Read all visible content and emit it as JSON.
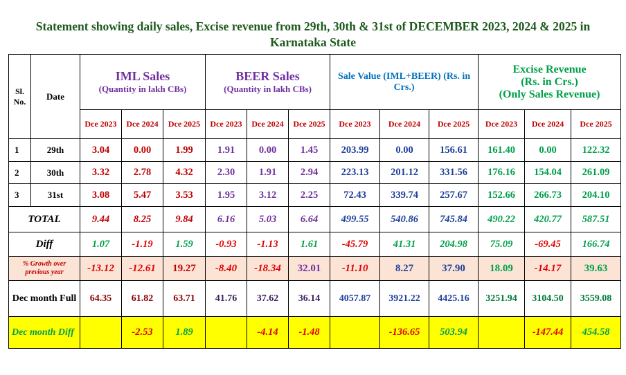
{
  "title": "Statement showing daily sales,  Excise revenue from 29th, 30th &  31st of  DECEMBER  2023, 2024  & 2025 in Karnataka State",
  "table": {
    "sl_no": "Sl. No.",
    "date": "Date",
    "groups": [
      {
        "lines": [
          "IML Sales",
          "(Quantity in lakh CBs)"
        ],
        "years": [
          "Dce 2023",
          "Dce 2024",
          "Dce 2025"
        ]
      },
      {
        "lines": [
          "BEER Sales",
          "(Quantity in lakh CBs)"
        ],
        "years": [
          "Dce 2023",
          "Dce 2024",
          "Dce 2025"
        ]
      },
      {
        "lines": [
          "Sale Value (IML+BEER)  (Rs. in Crs.)"
        ],
        "years": [
          "Dce 2023",
          "Dce 2024",
          "Dce 2025"
        ]
      },
      {
        "lines": [
          "Excise  Revenue",
          "(Rs. in Crs.)",
          "(Only Sales Revenue)"
        ],
        "years": [
          "Dce 2023",
          "Dce 2024",
          "Dce 2025"
        ]
      }
    ],
    "rows": [
      {
        "sl_no": "1",
        "date": "29th",
        "values": [
          "3.04",
          "0.00",
          "1.99",
          "1.91",
          "0.00",
          "1.45",
          "203.99",
          "0.00",
          "156.61",
          "161.40",
          "0.00",
          "122.32"
        ]
      },
      {
        "sl_no": "2",
        "date": "30th",
        "values": [
          "3.32",
          "2.78",
          "4.32",
          "2.30",
          "1.91",
          "2.94",
          "223.13",
          "201.12",
          "331.56",
          "176.16",
          "154.04",
          "261.09"
        ]
      },
      {
        "sl_no": "3",
        "date": "31st",
        "values": [
          "3.08",
          "5.47",
          "3.53",
          "1.95",
          "3.12",
          "2.25",
          "72.43",
          "339.74",
          "257.67",
          "152.66",
          "266.73",
          "204.10"
        ]
      },
      {
        "label": "TOTAL",
        "values": [
          "9.44",
          "8.25",
          "9.84",
          "6.16",
          "5.03",
          "6.64",
          "499.55",
          "540.86",
          "745.84",
          "490.22",
          "420.77",
          "587.51"
        ]
      },
      {
        "label": "Diff",
        "values": [
          "1.07",
          "-1.19",
          "1.59",
          "-0.93",
          "-1.13",
          "1.61",
          "-45.79",
          "41.31",
          "204.98",
          "75.09",
          "-69.45",
          "166.74"
        ]
      },
      {
        "label": "% Growth over previous year",
        "values": [
          "-13.12",
          "-12.61",
          "19.27",
          "-8.40",
          "-18.34",
          "32.01",
          "-11.10",
          "8.27",
          "37.90",
          "18.09",
          "-14.17",
          "39.63"
        ]
      },
      {
        "label": "Dec month Full",
        "values": [
          "64.35",
          "61.82",
          "63.71",
          "41.76",
          "37.62",
          "36.14",
          "4057.87",
          "3921.22",
          "4425.16",
          "3251.94",
          "3104.50",
          "3559.08"
        ]
      },
      {
        "label": "Dec month Diff",
        "values": [
          null,
          "-2.53",
          "1.89",
          null,
          "-4.14",
          "-1.48",
          null,
          "-136.65",
          "503.94",
          null,
          "-147.44",
          "454.58"
        ]
      }
    ]
  }
}
